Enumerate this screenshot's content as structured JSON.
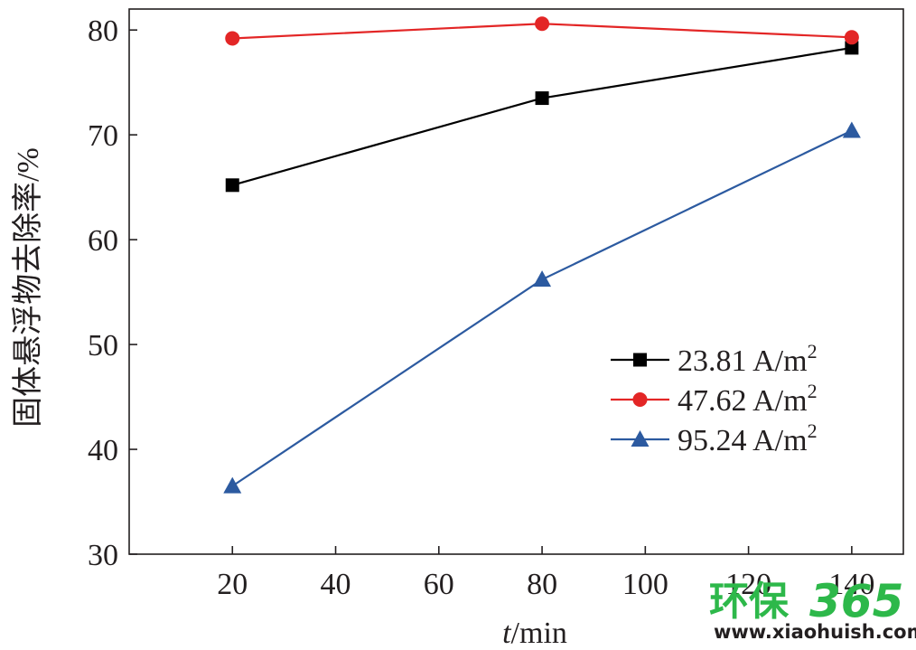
{
  "chart_data": {
    "type": "line",
    "title": "",
    "xlabel_italic": "t",
    "xlabel_rest": "/min",
    "ylabel": "固体悬浮物去除率/%",
    "xlim": [
      0,
      150
    ],
    "ylim": [
      30,
      82
    ],
    "x_ticks": [
      20,
      40,
      60,
      80,
      100,
      120,
      140
    ],
    "y_ticks": [
      30,
      40,
      50,
      60,
      70,
      80
    ],
    "grid": false,
    "legend_position": "center-right",
    "x": [
      20,
      80,
      140
    ],
    "series": [
      {
        "name": "23.81 A/m",
        "name_sup": "2",
        "values": [
          65.2,
          73.5,
          78.3
        ],
        "color": "#000000",
        "marker": "square"
      },
      {
        "name": "47.62 A/m",
        "name_sup": "2",
        "values": [
          79.2,
          80.6,
          79.3
        ],
        "color": "#e32626",
        "marker": "circle"
      },
      {
        "name": "95.24 A/m",
        "name_sup": "2",
        "values": [
          36.5,
          56.2,
          70.4
        ],
        "color": "#2c5aa0",
        "marker": "triangle"
      }
    ]
  },
  "watermark": {
    "brand_cn": "环保",
    "brand_num": "365",
    "url": "www.xiaohuish.com",
    "green": "#2db84a"
  }
}
